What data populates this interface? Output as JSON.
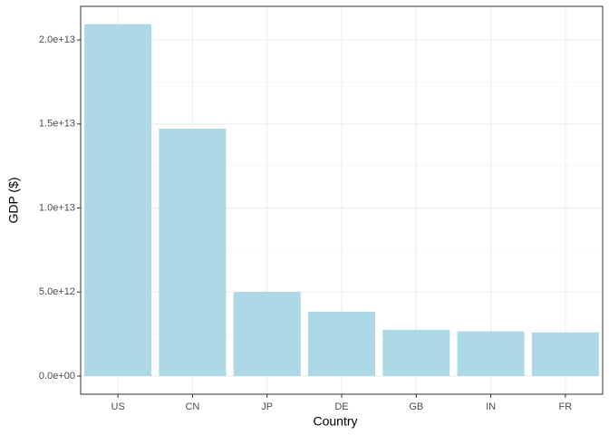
{
  "chart_data": {
    "type": "bar",
    "x_label": "Country",
    "y_label": "GDP ($)",
    "categories": [
      "US",
      "CN",
      "JP",
      "DE",
      "GB",
      "IN",
      "FR"
    ],
    "values": [
      20940000000000,
      14720000000000,
      5010000000000,
      3830000000000,
      2750000000000,
      2660000000000,
      2600000000000
    ],
    "color": "#add8e6",
    "ylim": [
      -1080000000000,
      22000000000000
    ],
    "yticks": [
      {
        "value": 0,
        "label": "0.0e+00"
      },
      {
        "value": 5000000000000,
        "label": "5.0e+12"
      },
      {
        "value": 10000000000000,
        "label": "1.0e+13"
      },
      {
        "value": 15000000000000,
        "label": "1.5e+13"
      },
      {
        "value": 20000000000000,
        "label": "2.0e+13"
      }
    ],
    "grid": true
  }
}
